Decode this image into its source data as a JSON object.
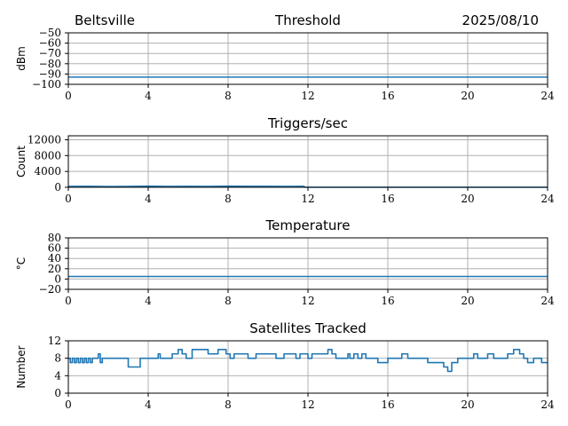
{
  "header": {
    "station": "Beltsville",
    "date": "2025/08/10"
  },
  "colors": {
    "series": "#1f77b4",
    "grid": "#b0b0b0",
    "axis": "#000000"
  },
  "chart_data": [
    {
      "type": "line",
      "title": "Threshold",
      "ylabel": "dBm",
      "xlim": [
        0,
        24
      ],
      "xticks": [
        0,
        4,
        8,
        12,
        16,
        20,
        24
      ],
      "ylim": [
        -100,
        -50
      ],
      "yticks": [
        -100,
        -90,
        -80,
        -70,
        -60,
        -50
      ],
      "ytick_labels": [
        "−100",
        "−90",
        "−80",
        "−70",
        "−60",
        "−50"
      ],
      "grid": true,
      "series": [
        {
          "x": [
            0,
            24
          ],
          "y": [
            -93,
            -93
          ]
        }
      ]
    },
    {
      "type": "line",
      "title": "Triggers/sec",
      "ylabel": "Count",
      "xlim": [
        0,
        24
      ],
      "xticks": [
        0,
        4,
        8,
        12,
        16,
        20,
        24
      ],
      "ylim": [
        0,
        13000
      ],
      "yticks": [
        0,
        4000,
        8000,
        12000
      ],
      "ytick_labels": [
        "0",
        "4000",
        "8000",
        "12000"
      ],
      "grid": true,
      "series": [
        {
          "x": [
            0,
            1,
            2,
            3,
            4,
            5,
            6,
            7,
            8,
            9,
            10,
            11,
            11.8,
            11.85,
            24
          ],
          "y": [
            200,
            250,
            180,
            220,
            260,
            200,
            240,
            210,
            280,
            230,
            250,
            220,
            240,
            0,
            0
          ]
        }
      ]
    },
    {
      "type": "line",
      "title": "Temperature",
      "ylabel": "°C",
      "xlim": [
        0,
        24
      ],
      "xticks": [
        0,
        4,
        8,
        12,
        16,
        20,
        24
      ],
      "ylim": [
        -20,
        80
      ],
      "yticks": [
        -20,
        0,
        20,
        40,
        60,
        80
      ],
      "ytick_labels": [
        "−20",
        "0",
        "20",
        "40",
        "60",
        "80"
      ],
      "grid": true,
      "series": [
        {
          "x": [
            0,
            24
          ],
          "y": [
            5,
            5
          ]
        }
      ]
    },
    {
      "type": "line",
      "title": "Satellites Tracked",
      "ylabel": "Number",
      "xlim": [
        0,
        24
      ],
      "xticks": [
        0,
        4,
        8,
        12,
        16,
        20,
        24
      ],
      "ylim": [
        0,
        12
      ],
      "yticks": [
        0,
        4,
        8,
        12
      ],
      "ytick_labels": [
        "0",
        "4",
        "8",
        "12"
      ],
      "grid": true,
      "series": [
        {
          "step": true,
          "x": [
            0,
            0.1,
            0.2,
            0.3,
            0.4,
            0.5,
            0.6,
            0.7,
            0.8,
            0.9,
            1.0,
            1.1,
            1.2,
            1.3,
            1.5,
            1.6,
            1.7,
            1.8,
            3.0,
            3.6,
            4.0,
            4.5,
            4.6,
            5.0,
            5.2,
            5.5,
            5.7,
            5.9,
            6.2,
            6.4,
            7.0,
            7.5,
            7.9,
            8.1,
            8.3,
            8.6,
            9.0,
            9.4,
            10.2,
            10.4,
            10.8,
            11.0,
            11.4,
            11.6,
            11.8,
            12.0,
            12.2,
            12.5,
            13.0,
            13.2,
            13.4,
            14.0,
            14.1,
            14.3,
            14.5,
            14.7,
            14.9,
            15.3,
            15.5,
            16.0,
            16.2,
            16.7,
            17.0,
            17.8,
            18.0,
            18.3,
            18.6,
            18.8,
            19.0,
            19.2,
            19.5,
            19.7,
            20.3,
            20.5,
            21.0,
            21.3,
            21.5,
            22.0,
            22.3,
            22.6,
            22.8,
            23.0,
            23.3,
            23.7,
            24.0
          ],
          "y": [
            8,
            7,
            8,
            7,
            8,
            7,
            8,
            7,
            8,
            7,
            8,
            7,
            8,
            8,
            9,
            7,
            8,
            8,
            6,
            8,
            8,
            9,
            8,
            8,
            9,
            10,
            9,
            8,
            10,
            10,
            9,
            10,
            9,
            8,
            9,
            9,
            8,
            9,
            9,
            8,
            9,
            9,
            8,
            9,
            9,
            8,
            9,
            9,
            10,
            9,
            8,
            9,
            8,
            9,
            8,
            9,
            8,
            8,
            7,
            8,
            8,
            9,
            8,
            8,
            7,
            7,
            7,
            6,
            5,
            7,
            8,
            8,
            9,
            8,
            9,
            8,
            8,
            9,
            10,
            9,
            8,
            7,
            8,
            7,
            7
          ]
        }
      ]
    }
  ]
}
